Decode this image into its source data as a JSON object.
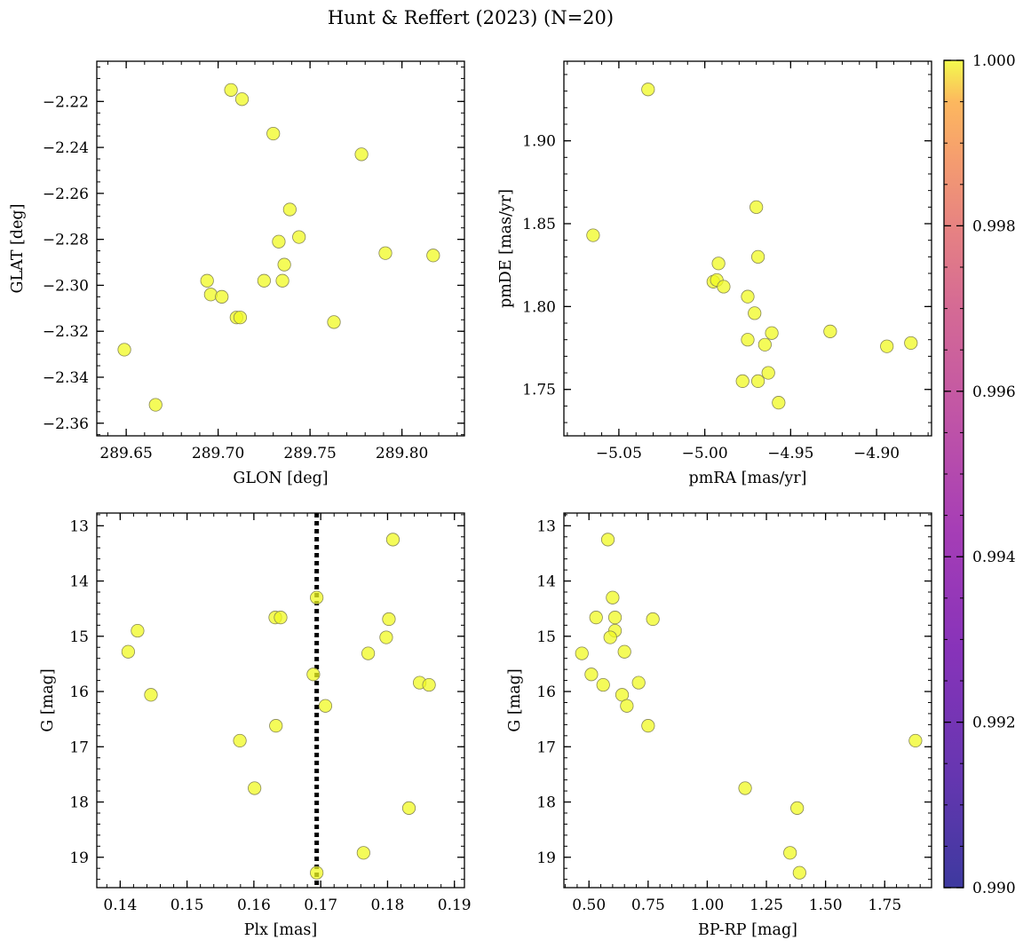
{
  "figure": {
    "title": "Hunt & Reffert (2023) (N=20)"
  },
  "colorbar": {
    "range": [
      0.99,
      1.0
    ],
    "colormap": "plasma",
    "ticks": [
      "0.990",
      "0.992",
      "0.994",
      "0.996",
      "0.998",
      "1.000"
    ]
  },
  "style": {
    "marker_color": "#f0f921",
    "marker_alpha": 0.75,
    "marker_edge": "#888855",
    "reference_line_color": "#000000"
  },
  "chart_data": [
    {
      "id": "glon_glat",
      "type": "scatter",
      "xlabel": "GLON [deg]",
      "ylabel": "GLAT [deg]",
      "xlim": [
        289.634,
        289.834
      ],
      "ylim": [
        -2.3655,
        -2.2025
      ],
      "xticks": [
        289.65,
        289.7,
        289.75,
        289.8
      ],
      "xtick_labels": [
        "289.65",
        "289.70",
        "289.75",
        "289.80"
      ],
      "xminor": 0.01,
      "yticks": [
        -2.36,
        -2.34,
        -2.32,
        -2.3,
        -2.28,
        -2.26,
        -2.24,
        -2.22
      ],
      "ytick_labels": [
        "−2.36",
        "−2.34",
        "−2.32",
        "−2.30",
        "−2.28",
        "−2.26",
        "−2.24",
        "−2.22"
      ],
      "yminor": 0.005,
      "x": [
        289.707,
        289.713,
        289.73,
        289.778,
        289.739,
        289.744,
        289.733,
        289.791,
        289.817,
        289.736,
        289.694,
        289.725,
        289.735,
        289.696,
        289.702,
        289.71,
        289.712,
        289.763,
        289.649,
        289.666
      ],
      "y": [
        -2.215,
        -2.219,
        -2.234,
        -2.243,
        -2.267,
        -2.279,
        -2.281,
        -2.286,
        -2.287,
        -2.291,
        -2.298,
        -2.298,
        -2.298,
        -2.304,
        -2.305,
        -2.314,
        -2.314,
        -2.316,
        -2.328,
        -2.352
      ],
      "color_value": 1.0
    },
    {
      "id": "pm",
      "type": "scatter",
      "xlabel": "pmRA [mas/yr]",
      "ylabel": "pmDE [mas/yr]",
      "xlim": [
        -5.082,
        -4.868
      ],
      "ylim": [
        1.722,
        1.948
      ],
      "xticks": [
        -5.05,
        -5.0,
        -4.95,
        -4.9
      ],
      "xtick_labels": [
        "−5.05",
        "−5.00",
        "−4.95",
        "−4.90"
      ],
      "xminor": 0.01,
      "yticks": [
        1.75,
        1.8,
        1.85,
        1.9
      ],
      "ytick_labels": [
        "1.75",
        "1.80",
        "1.85",
        "1.90"
      ],
      "yminor": 0.01,
      "x": [
        -5.033,
        -5.065,
        -4.97,
        -4.992,
        -4.969,
        -4.995,
        -4.993,
        -4.989,
        -4.975,
        -4.971,
        -4.927,
        -4.961,
        -4.975,
        -4.965,
        -4.894,
        -4.88,
        -4.963,
        -4.969,
        -4.978,
        -4.957
      ],
      "y": [
        1.931,
        1.843,
        1.86,
        1.826,
        1.83,
        1.815,
        1.816,
        1.812,
        1.806,
        1.796,
        1.785,
        1.784,
        1.78,
        1.777,
        1.776,
        1.778,
        1.76,
        1.755,
        1.755,
        1.742
      ],
      "color_value": 1.0
    },
    {
      "id": "plx_g",
      "type": "scatter",
      "xlabel": "Plx [mas]",
      "ylabel": "G [mag]",
      "xlim": [
        0.1365,
        0.1915
      ],
      "ylim": [
        19.55,
        12.77
      ],
      "y_inverted": true,
      "xticks": [
        0.14,
        0.15,
        0.16,
        0.17,
        0.18,
        0.19
      ],
      "xtick_labels": [
        "0.14",
        "0.15",
        "0.16",
        "0.17",
        "0.18",
        "0.19"
      ],
      "xminor": 0.002,
      "yticks": [
        13,
        14,
        15,
        16,
        17,
        18,
        19
      ],
      "ytick_labels": [
        "13",
        "14",
        "15",
        "16",
        "17",
        "18",
        "19"
      ],
      "yminor": 0.2,
      "vline": 0.1694,
      "x": [
        0.1808,
        0.1694,
        0.1632,
        0.164,
        0.1802,
        0.1426,
        0.1412,
        0.1798,
        0.1771,
        0.1689,
        0.1848,
        0.1862,
        0.1446,
        0.1707,
        0.1633,
        0.1579,
        0.1601,
        0.1832,
        0.1764,
        0.1694
      ],
      "y": [
        13.25,
        14.3,
        14.66,
        14.66,
        14.69,
        14.9,
        15.28,
        15.02,
        15.31,
        15.69,
        15.84,
        15.88,
        16.06,
        16.26,
        16.62,
        16.89,
        17.75,
        18.11,
        18.92,
        19.28
      ],
      "color_value": 1.0
    },
    {
      "id": "cmd",
      "type": "scatter",
      "xlabel": "BP-RP [mag]",
      "ylabel": "G [mag]",
      "xlim": [
        0.394,
        1.948
      ],
      "ylim": [
        19.55,
        12.77
      ],
      "y_inverted": true,
      "xticks": [
        0.5,
        0.75,
        1.0,
        1.25,
        1.5,
        1.75
      ],
      "xtick_labels": [
        "0.50",
        "0.75",
        "1.00",
        "1.25",
        "1.50",
        "1.75"
      ],
      "xminor": 0.05,
      "yticks": [
        13,
        14,
        15,
        16,
        17,
        18,
        19
      ],
      "ytick_labels": [
        "13",
        "14",
        "15",
        "16",
        "17",
        "18",
        "19"
      ],
      "yminor": 0.2,
      "x": [
        0.58,
        0.6,
        0.53,
        0.61,
        0.77,
        0.61,
        0.59,
        0.65,
        0.47,
        0.51,
        0.71,
        0.56,
        0.64,
        0.66,
        0.75,
        1.88,
        1.16,
        1.38,
        1.35,
        1.39
      ],
      "y": [
        13.25,
        14.3,
        14.66,
        14.66,
        14.69,
        14.9,
        15.02,
        15.28,
        15.31,
        15.69,
        15.84,
        15.88,
        16.06,
        16.26,
        16.62,
        16.89,
        17.75,
        18.11,
        18.92,
        19.28
      ],
      "color_value": 1.0
    }
  ]
}
